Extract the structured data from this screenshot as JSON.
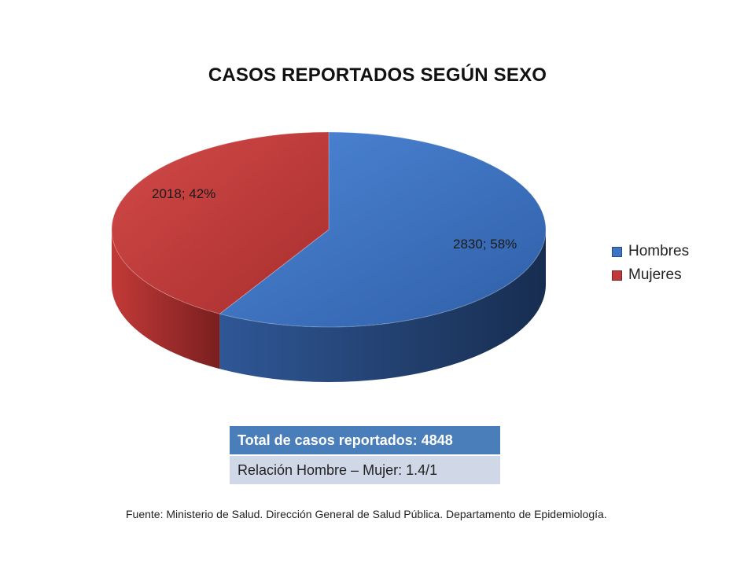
{
  "chart_data": {
    "type": "pie",
    "title": "CASOS REPORTADOS SEGÚN SEXO",
    "slices": [
      {
        "name": "Hombres",
        "value": 2830,
        "percent": 58,
        "label": "2830; 58%",
        "color": "#3f74c4"
      },
      {
        "name": "Mujeres",
        "value": 2018,
        "percent": 42,
        "label": "2018; 42%",
        "color": "#c0393b"
      }
    ],
    "legend_position": "right",
    "style": "3d"
  },
  "legend": {
    "items": [
      {
        "label": "Hombres",
        "color": "#3f74c4"
      },
      {
        "label": "Mujeres",
        "color": "#c0393b"
      }
    ]
  },
  "summary": {
    "total": "Total de casos reportados: 4848",
    "ratio": "Relación Hombre – Mujer: 1.4/1"
  },
  "source": "Fuente: Ministerio de Salud. Dirección General de Salud Pública. Departamento de Epidemiología."
}
